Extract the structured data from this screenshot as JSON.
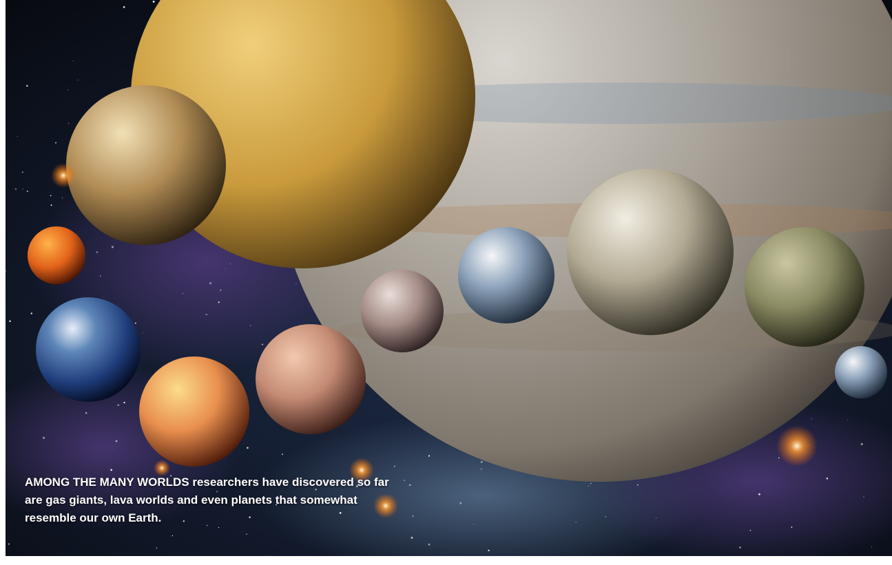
{
  "caption": {
    "lead": "AMONG THE MANY WORLDS",
    "text": "researchers have discovered so far are gas giants, lava worlds and even planets that somewhat resemble our own Earth."
  }
}
